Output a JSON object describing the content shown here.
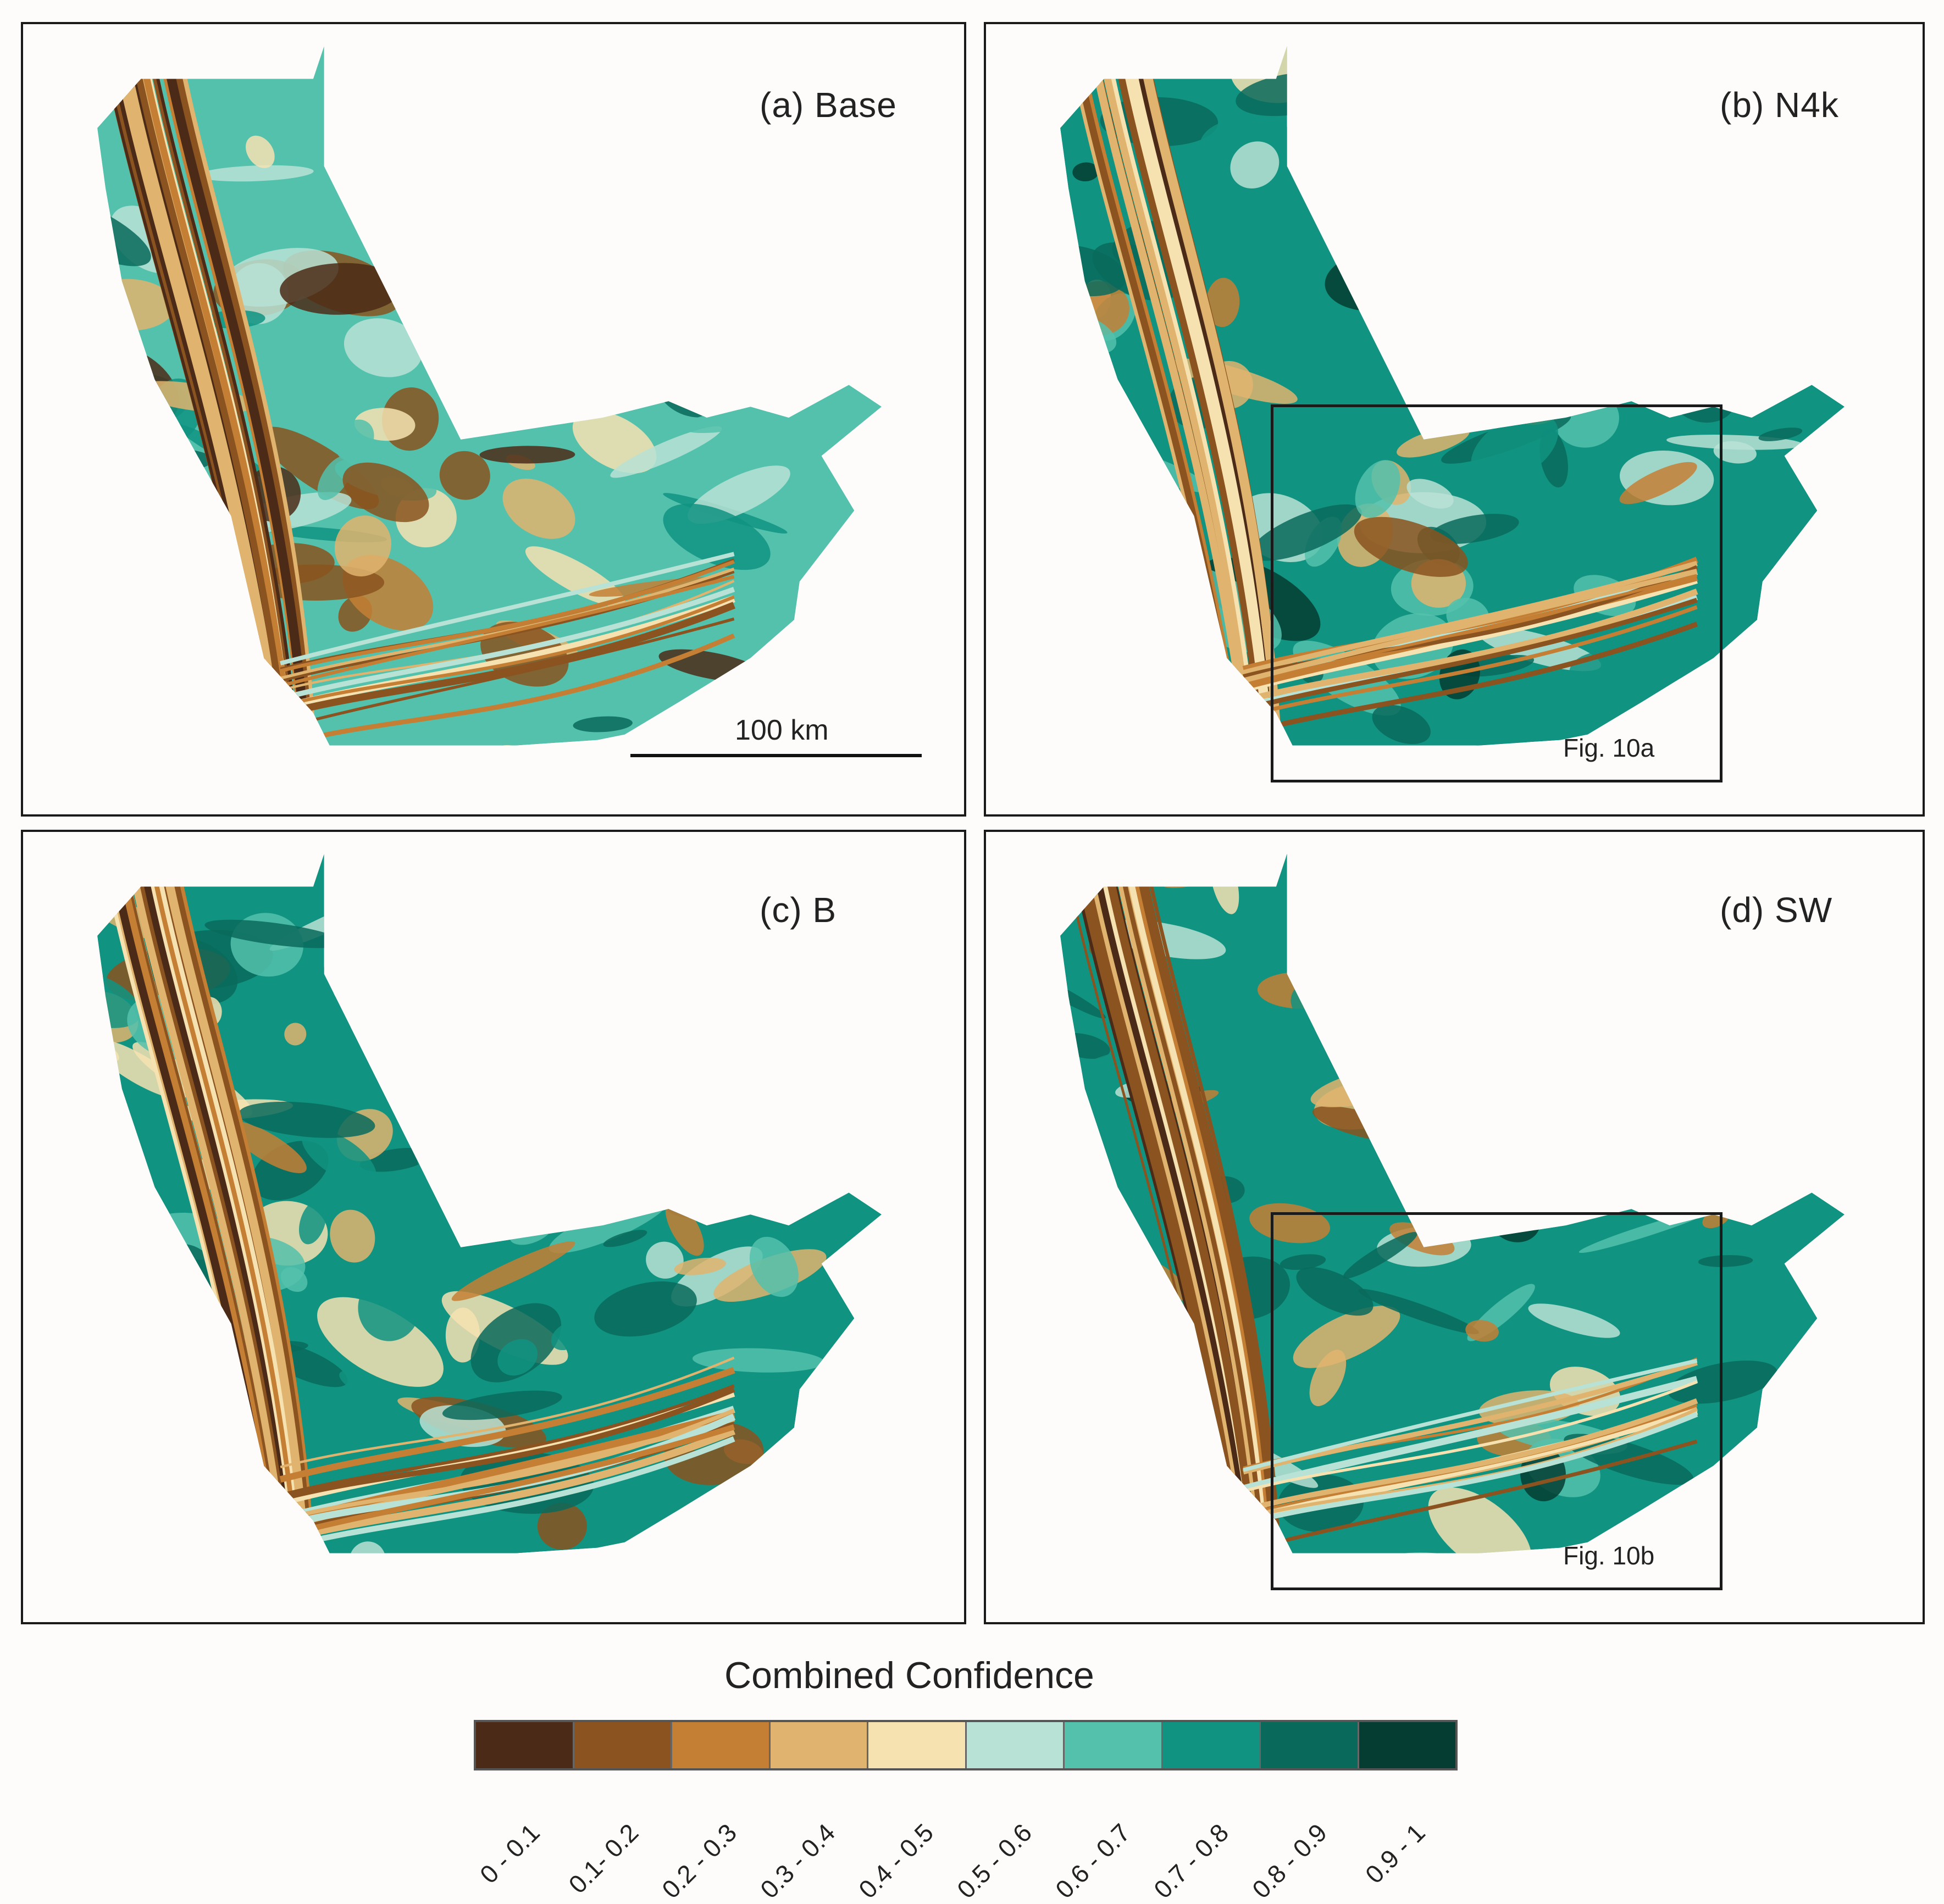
{
  "panels": {
    "a": {
      "label": "(a) Base"
    },
    "b": {
      "label": "(b) N4k",
      "inset": "Fig. 10a"
    },
    "c": {
      "label": "(c) B"
    },
    "d": {
      "label": "(d) SW",
      "inset": "Fig. 10b"
    }
  },
  "scalebar": {
    "label": "100 km"
  },
  "legend": {
    "title": "Combined Confidence",
    "classes": [
      {
        "label": "0 - 0.1",
        "color": "#4b2b17"
      },
      {
        "label": "0.1- 0.2",
        "color": "#8a531f"
      },
      {
        "label": "0.2 - 0.3",
        "color": "#c47f35"
      },
      {
        "label": "0.3 - 0.4",
        "color": "#e0b46e"
      },
      {
        "label": "0.4 - 0.5",
        "color": "#f6e2b1"
      },
      {
        "label": "0.5 - 0.6",
        "color": "#b8e2d5"
      },
      {
        "label": "0.6 - 0.7",
        "color": "#54c1ac"
      },
      {
        "label": "0.7 - 0.8",
        "color": "#109381"
      },
      {
        "label": "0.8 - 0.9",
        "color": "#096a5c"
      },
      {
        "label": "0.9 - 1",
        "color": "#053d33"
      }
    ]
  }
}
